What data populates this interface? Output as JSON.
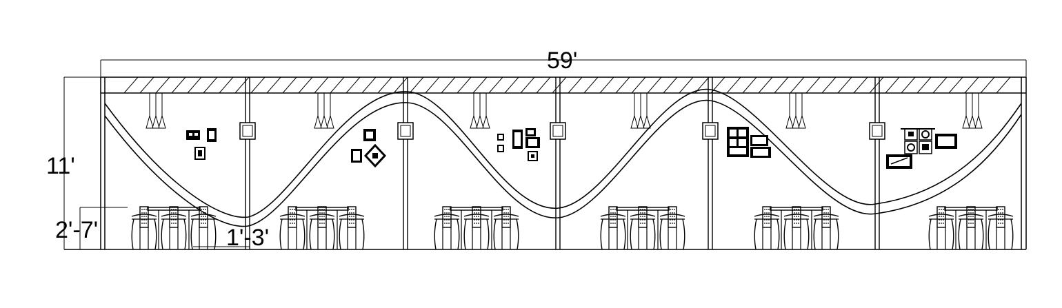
{
  "dimensions": {
    "overall_length": "59'",
    "height": "11'",
    "table_height": "2'-7'",
    "offset": "1'-3'"
  },
  "colors": {
    "line": "#000000",
    "background": "#ffffff"
  },
  "counts": {
    "bays": 6,
    "chairs_per_bay": 3
  },
  "icons": [
    "pendant-light-icon",
    "wall-frame-icon",
    "column-lamp-icon",
    "chair-icon",
    "table-icon"
  ]
}
